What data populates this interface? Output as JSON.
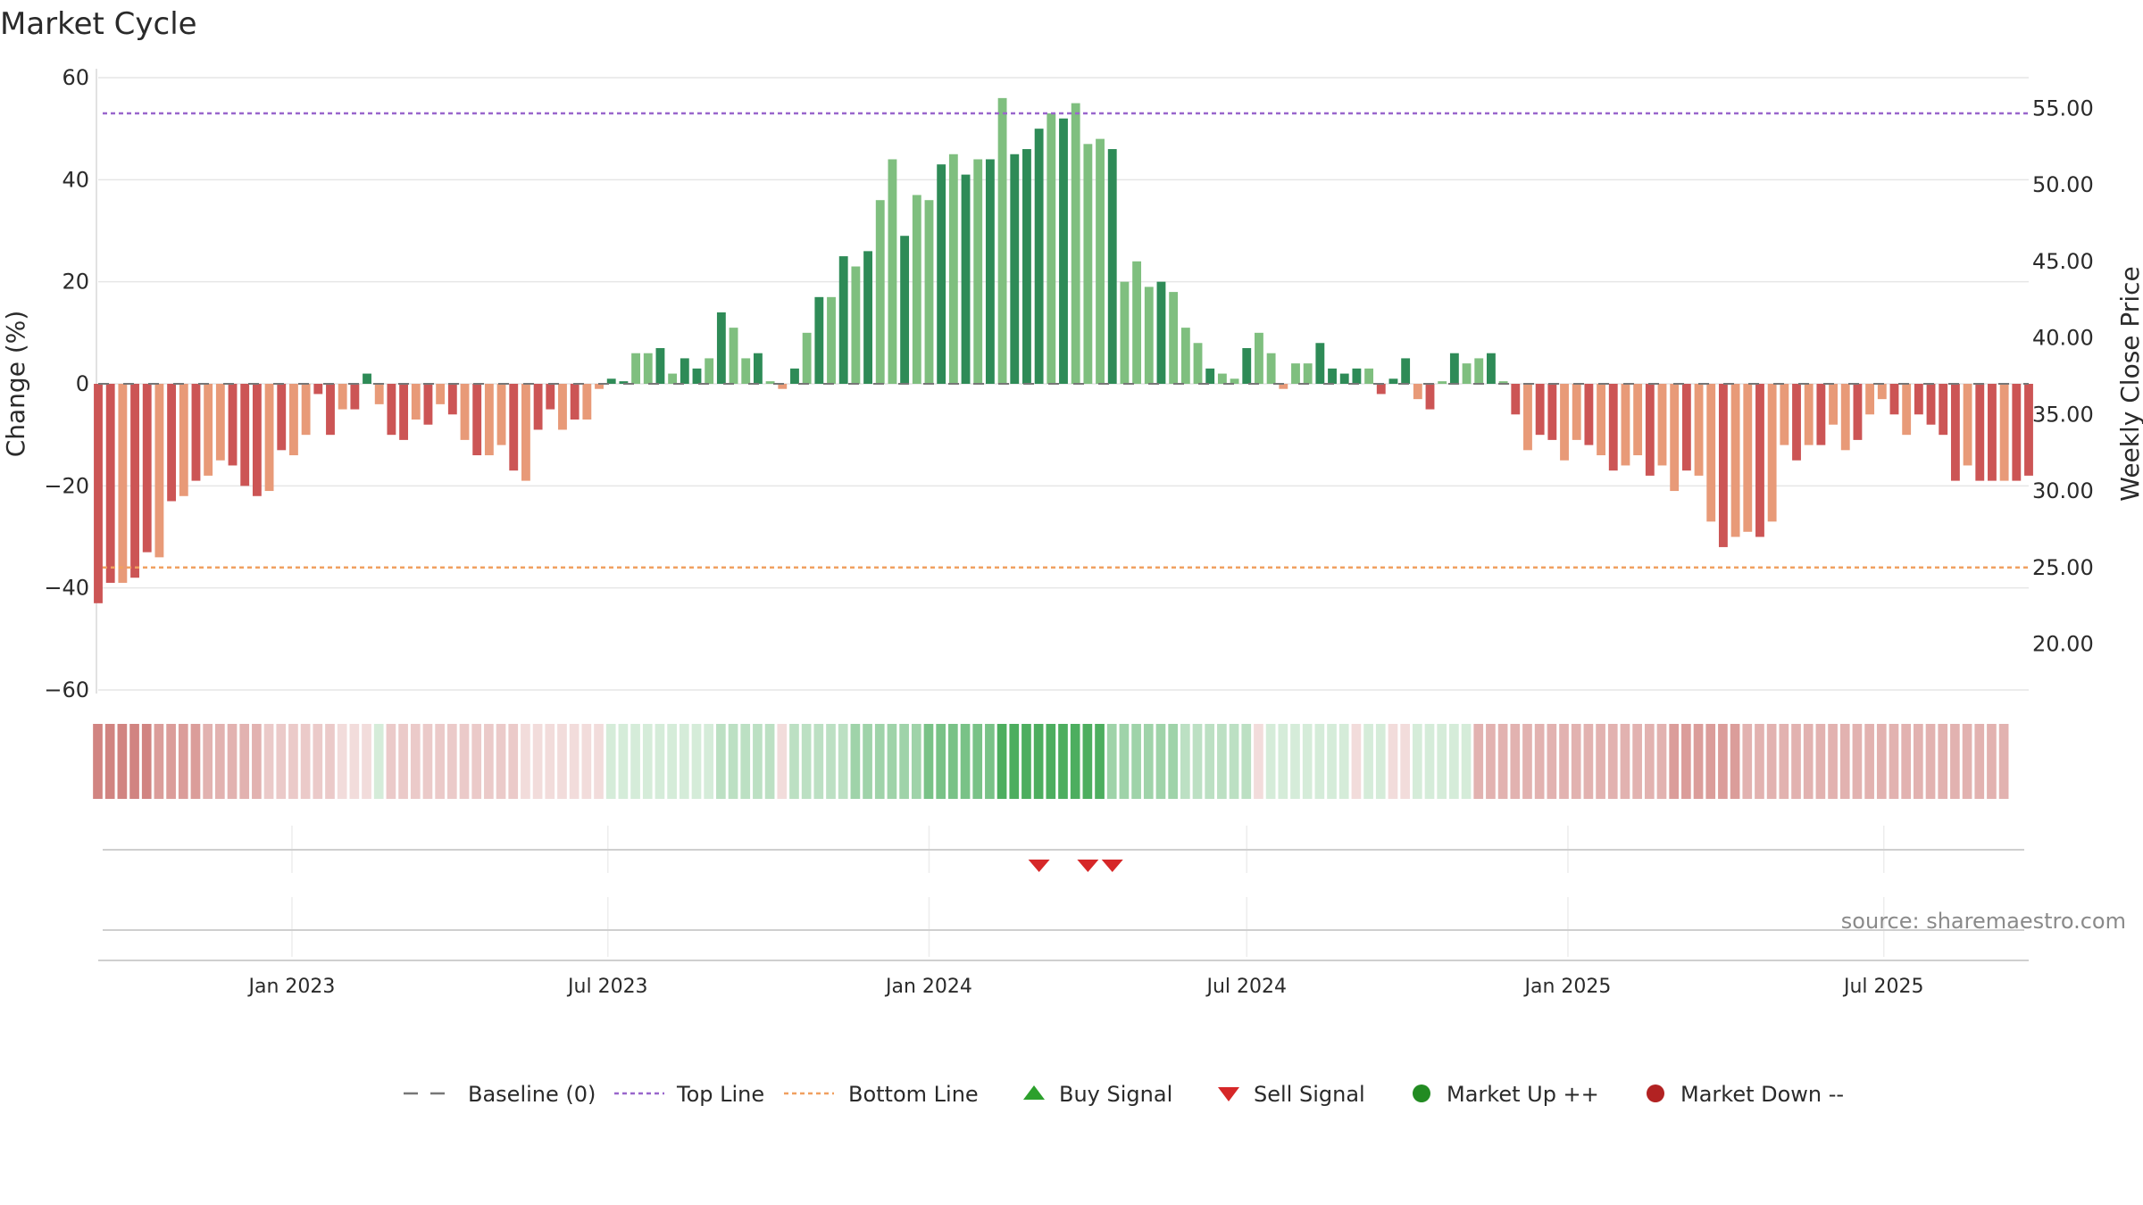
{
  "title": "Market Cycle",
  "source": "source: sharemaestro.com",
  "colors": {
    "up_dark": "#2e8b57",
    "up_light": "#7fbf7f",
    "down_dark": "#cc5555",
    "down_light": "#e89a78",
    "top_line": "#9966cc",
    "bottom_line": "#f0a060",
    "sell": "#d62728",
    "buy": "#2ca02c",
    "market_up": "#228b22",
    "market_down": "#b22222",
    "baseline": "#777777"
  },
  "chart_data": {
    "type": "bar",
    "title": "Market Cycle",
    "ylabel": "Change (%)",
    "y2label": "Weekly Close Price",
    "ylim": [
      -60,
      60
    ],
    "y_ticks": [
      60,
      40,
      20,
      0,
      -20,
      -40,
      -60
    ],
    "y_tick_labels": [
      "60",
      "40",
      "20",
      "0",
      "−20",
      "−40",
      "−60"
    ],
    "y2lim": [
      17.0,
      57.0
    ],
    "y2_ticks": [
      55,
      50,
      45,
      40,
      35,
      30,
      25,
      20
    ],
    "y2_tick_labels": [
      "55.00",
      "50.00",
      "45.00",
      "40.00",
      "35.00",
      "30.00",
      "25.00",
      "20.00"
    ],
    "x_range": [
      "2022-09-12",
      "2025-09-22"
    ],
    "x_ticks": [
      {
        "date": "2023-01-01",
        "label": "Jan 2023"
      },
      {
        "date": "2023-07-01",
        "label": "Jul 2023"
      },
      {
        "date": "2024-01-01",
        "label": "Jan 2024"
      },
      {
        "date": "2024-07-01",
        "label": "Jul 2024"
      },
      {
        "date": "2025-01-01",
        "label": "Jan 2025"
      },
      {
        "date": "2025-07-01",
        "label": "Jul 2025"
      }
    ],
    "top_line": 53,
    "bottom_line": -36,
    "grid": true,
    "legend_position": "bottom",
    "series": [
      {
        "name": "Change",
        "start": "2022-09-12",
        "interval_days": 7,
        "values": [
          -43,
          -39,
          -39,
          -38,
          -33,
          -34,
          -23,
          -22,
          -19,
          -18,
          -15,
          -16,
          -20,
          -22,
          -21,
          -13,
          -14,
          -10,
          -2,
          -10,
          -5,
          -5,
          2,
          -4,
          -10,
          -11,
          -7,
          -8,
          -4,
          -6,
          -11,
          -14,
          -14,
          -12,
          -17,
          -19,
          -9,
          -5,
          -9,
          -7,
          -7,
          -1,
          1,
          0.5,
          6,
          6,
          7,
          2,
          5,
          3,
          5,
          14,
          11,
          5,
          6,
          0.5,
          -1,
          3,
          10,
          17,
          17,
          25,
          23,
          26,
          36,
          44,
          29,
          37,
          36,
          43,
          45,
          41,
          44,
          44,
          56,
          45,
          46,
          50,
          53,
          52,
          55,
          47,
          48,
          46,
          20,
          24,
          19,
          20,
          18,
          11,
          8,
          3,
          2,
          1,
          7,
          10,
          6,
          -1,
          4,
          4,
          8,
          3,
          2,
          3,
          3,
          -2,
          1,
          5,
          -3,
          -5,
          0.5,
          6,
          4,
          5,
          6,
          0.5,
          -6,
          -13,
          -10,
          -11,
          -15,
          -11,
          -12,
          -14,
          -17,
          -16,
          -14,
          -18,
          -16,
          -21,
          -17,
          -18,
          -27,
          -32,
          -30,
          -29,
          -30,
          -27,
          -12,
          -15,
          -12,
          -12,
          -8,
          -13,
          -11,
          -6,
          -3,
          -6,
          -10,
          -6,
          -8,
          -10,
          -19,
          -16,
          -19,
          -19,
          -19,
          -19,
          -18
        ],
        "color_type": "ddlddldldlldddldllddlddlddldldldlldlddldllddlldlddldlldlldldldldlldlldldldldddldllldllldllldlldlllllddddldddldldlldldlddlldldlldlldlldlldlldldlldlldlddddlddlddddll"
      }
    ],
    "regime_strip": {
      "values": [
        -5,
        -5,
        -5,
        -5,
        -5,
        -4,
        -4,
        -4,
        -4,
        -3,
        -3,
        -3,
        -3,
        -3,
        -2,
        -2,
        -2,
        -2,
        -2,
        -2,
        -1,
        -1,
        -1,
        1,
        -2,
        -2,
        -2,
        -2,
        -2,
        -2,
        -2,
        -2,
        -2,
        -2,
        -2,
        -1,
        -1,
        -1,
        -1,
        -1,
        -1,
        -1,
        1,
        1,
        1,
        1,
        1,
        1,
        1,
        1,
        1,
        2,
        2,
        2,
        2,
        2,
        -1,
        2,
        2,
        2,
        2,
        2,
        3,
        3,
        3,
        3,
        3,
        3,
        4,
        4,
        4,
        4,
        4,
        4,
        5,
        5,
        5,
        5,
        5,
        5,
        5,
        5,
        5,
        3,
        3,
        3,
        3,
        3,
        3,
        2,
        2,
        2,
        2,
        2,
        2,
        -1,
        1,
        1,
        1,
        1,
        1,
        1,
        1,
        -1,
        1,
        1,
        -1,
        -1,
        1,
        1,
        1,
        1,
        1,
        -3,
        -3,
        -3,
        -3,
        -3,
        -3,
        -3,
        -3,
        -3,
        -3,
        -3,
        -3,
        -3,
        -3,
        -3,
        -3,
        -4,
        -4,
        -4,
        -4,
        -4,
        -4,
        -3,
        -3,
        -3,
        -3,
        -3,
        -3,
        -3,
        -3,
        -3,
        -3,
        -3,
        -3,
        -3,
        -3,
        -3,
        -3,
        -3,
        -3,
        -3,
        -3,
        -3,
        -3
      ]
    },
    "sell_signals": [
      "2024-03-04",
      "2024-04-01",
      "2024-04-15"
    ],
    "buy_signals": []
  },
  "legend": [
    {
      "label": "Baseline (0)",
      "icon": "dashed-line-icon"
    },
    {
      "label": "Top Line",
      "icon": "dotted-purple-line-icon"
    },
    {
      "label": "Bottom Line",
      "icon": "dotted-orange-line-icon"
    },
    {
      "label": "Buy Signal",
      "icon": "triangle-up-icon"
    },
    {
      "label": "Sell Signal",
      "icon": "triangle-down-icon"
    },
    {
      "label": "Market Up ++",
      "icon": "green-dot-icon"
    },
    {
      "label": "Market Down --",
      "icon": "red-dot-icon"
    }
  ]
}
